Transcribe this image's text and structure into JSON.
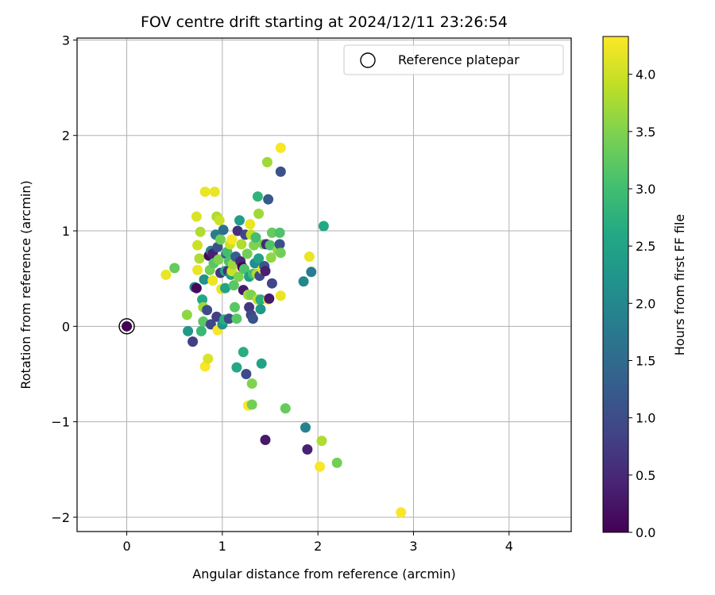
{
  "chart_data": {
    "type": "scatter",
    "title": "FOV centre drift starting at 2024/12/11 23:26:54",
    "xlabel": "Angular distance from reference (arcmin)",
    "ylabel": "Rotation from reference (arcmin)",
    "xlim": [
      -0.52,
      4.65
    ],
    "ylim": [
      -2.15,
      3.02
    ],
    "x_ticks": [
      "0",
      "1",
      "2",
      "3",
      "4"
    ],
    "y_ticks": [
      "−2",
      "−1",
      "0",
      "1",
      "2",
      "3"
    ],
    "x_tick_values": [
      0,
      1,
      2,
      3,
      4
    ],
    "y_tick_values": [
      -2,
      -1,
      0,
      1,
      2,
      3
    ],
    "grid": true,
    "legend": {
      "placement": "top-right",
      "entries": [
        "Reference platepar"
      ]
    },
    "colorbar": {
      "label": "Hours from first FF file",
      "colormap": "viridis",
      "range": [
        0,
        4.33
      ],
      "ticks": [
        "0.0",
        "0.5",
        "1.0",
        "1.5",
        "2.0",
        "2.5",
        "3.0",
        "3.5",
        "4.0"
      ],
      "tick_values": [
        0,
        0.5,
        1.0,
        1.5,
        2.0,
        2.5,
        3.0,
        3.5,
        4.0
      ]
    },
    "reference_point": {
      "x": 0,
      "y": 0,
      "c": 0
    },
    "series": [
      {
        "points": [
          [
            0.41,
            0.54,
            4.2
          ],
          [
            0.5,
            0.61,
            3.3
          ],
          [
            0.63,
            0.12,
            3.6
          ],
          [
            0.64,
            -0.05,
            2.3
          ],
          [
            0.69,
            -0.16,
            0.8
          ],
          [
            0.71,
            0.41,
            1.9
          ],
          [
            0.73,
            1.15,
            4.1
          ],
          [
            0.74,
            0.85,
            4.0
          ],
          [
            0.73,
            0.4,
            0.1
          ],
          [
            0.74,
            0.59,
            4.2
          ],
          [
            0.76,
            0.71,
            3.8
          ],
          [
            0.77,
            0.99,
            3.8
          ],
          [
            0.78,
            -0.05,
            2.9
          ],
          [
            0.79,
            0.28,
            2.6
          ],
          [
            0.8,
            0.05,
            3.2
          ],
          [
            0.8,
            0.2,
            3.7
          ],
          [
            0.81,
            0.49,
            2.2
          ],
          [
            0.82,
            1.41,
            4.2
          ],
          [
            0.82,
            -0.42,
            4.3
          ],
          [
            0.85,
            -0.34,
            4.1
          ],
          [
            0.84,
            0.17,
            1.0
          ],
          [
            0.86,
            0.74,
            0.1
          ],
          [
            0.87,
            0.59,
            3.4
          ],
          [
            0.88,
            0.79,
            1.8
          ],
          [
            0.88,
            0.02,
            0.9
          ],
          [
            0.9,
            0.48,
            4.2
          ],
          [
            0.9,
            0.76,
            0.4
          ],
          [
            0.91,
            0.66,
            3.2
          ],
          [
            0.92,
            1.41,
            4.2
          ],
          [
            0.93,
            0.96,
            1.8
          ],
          [
            0.94,
            1.15,
            3.8
          ],
          [
            0.94,
            0.1,
            0.8
          ],
          [
            0.95,
            0.83,
            1.1
          ],
          [
            0.95,
            -0.04,
            4.3
          ],
          [
            0.96,
            0.7,
            3.5
          ],
          [
            0.97,
            1.11,
            4.0
          ],
          [
            0.98,
            0.56,
            0.7
          ],
          [
            0.98,
            0.91,
            3.4
          ],
          [
            0.99,
            0.39,
            4.2
          ],
          [
            1.0,
            0.02,
            2.2
          ],
          [
            1.01,
            1.01,
            1.6
          ],
          [
            1.02,
            0.07,
            2.7
          ],
          [
            1.03,
            0.58,
            2.5
          ],
          [
            1.03,
            0.4,
            2.5
          ],
          [
            1.04,
            0.76,
            1.2
          ],
          [
            1.05,
            0.78,
            3.0
          ],
          [
            1.06,
            0.58,
            0.6
          ],
          [
            1.07,
            0.68,
            3.1
          ],
          [
            1.07,
            0.08,
            1.0
          ],
          [
            1.08,
            0.86,
            4.0
          ],
          [
            1.09,
            0.54,
            2.4
          ],
          [
            1.1,
            0.91,
            4.3
          ],
          [
            1.1,
            0.58,
            4.0
          ],
          [
            1.11,
            0.65,
            3.7
          ],
          [
            1.12,
            0.43,
            3.2
          ],
          [
            1.13,
            0.2,
            3.2
          ],
          [
            1.14,
            0.73,
            1.3
          ],
          [
            1.15,
            0.08,
            3.2
          ],
          [
            1.15,
            -0.43,
            2.6
          ],
          [
            1.16,
            1.0,
            0.6
          ],
          [
            1.17,
            0.52,
            3.5
          ],
          [
            1.18,
            1.11,
            2.4
          ],
          [
            1.19,
            0.68,
            0.5
          ],
          [
            1.2,
            0.86,
            3.8
          ],
          [
            1.21,
            0.62,
            0.0
          ],
          [
            1.22,
            0.38,
            0.3
          ],
          [
            1.22,
            -0.27,
            2.7
          ],
          [
            1.23,
            0.6,
            3.1
          ],
          [
            1.24,
            0.96,
            0.9
          ],
          [
            1.25,
            -0.5,
            1.0
          ],
          [
            1.26,
            0.76,
            3.4
          ],
          [
            1.27,
            0.33,
            3.7
          ],
          [
            1.27,
            -0.83,
            4.3
          ],
          [
            1.28,
            0.52,
            2.4
          ],
          [
            1.28,
            0.2,
            0.7
          ],
          [
            1.29,
            1.07,
            4.2
          ],
          [
            1.3,
            0.96,
            3.9
          ],
          [
            1.3,
            0.12,
            0.9
          ],
          [
            1.3,
            0.33,
            3.5
          ],
          [
            1.31,
            -0.6,
            3.5
          ],
          [
            1.31,
            -0.82,
            3.4
          ],
          [
            1.32,
            0.55,
            3.0
          ],
          [
            1.32,
            0.08,
            1.1
          ],
          [
            1.33,
            0.85,
            3.5
          ],
          [
            1.34,
            0.66,
            2.1
          ],
          [
            1.35,
            0.93,
            3.0
          ],
          [
            1.36,
            0.55,
            3.8
          ],
          [
            1.37,
            1.36,
            2.8
          ],
          [
            1.37,
            0.28,
            3.9
          ],
          [
            1.38,
            1.18,
            3.7
          ],
          [
            1.38,
            0.71,
            2.5
          ],
          [
            1.39,
            0.53,
            1.0
          ],
          [
            1.4,
            0.18,
            2.3
          ],
          [
            1.4,
            0.28,
            2.7
          ],
          [
            1.41,
            -0.39,
            2.5
          ],
          [
            1.42,
            0.6,
            4.2
          ],
          [
            1.43,
            0.86,
            3.4
          ],
          [
            1.44,
            0.63,
            1.2
          ],
          [
            1.45,
            0.58,
            0.4
          ],
          [
            1.45,
            -1.19,
            0.3
          ],
          [
            1.46,
            0.86,
            0.5
          ],
          [
            1.47,
            1.72,
            3.7
          ],
          [
            1.48,
            0.28,
            4.3
          ],
          [
            1.48,
            1.33,
            1.2
          ],
          [
            1.49,
            0.29,
            0.3
          ],
          [
            1.5,
            0.85,
            3.1
          ],
          [
            1.51,
            0.72,
            3.6
          ],
          [
            1.52,
            0.98,
            3.3
          ],
          [
            1.52,
            0.45,
            0.9
          ],
          [
            1.58,
            0.8,
            3.6
          ],
          [
            1.6,
            0.86,
            1.1
          ],
          [
            1.6,
            0.98,
            3.1
          ],
          [
            1.61,
            0.32,
            4.2
          ],
          [
            1.61,
            1.62,
            1.1
          ],
          [
            1.61,
            1.87,
            4.3
          ],
          [
            1.61,
            0.77,
            3.4
          ],
          [
            1.66,
            -0.86,
            3.3
          ],
          [
            1.85,
            0.47,
            2.0
          ],
          [
            1.87,
            -1.06,
            1.9
          ],
          [
            1.89,
            -1.29,
            0.4
          ],
          [
            1.91,
            0.73,
            4.2
          ],
          [
            1.93,
            0.57,
            1.8
          ],
          [
            2.02,
            -1.47,
            4.3
          ],
          [
            2.04,
            -1.2,
            3.8
          ],
          [
            2.06,
            1.05,
            2.6
          ],
          [
            2.2,
            -1.43,
            3.4
          ],
          [
            2.87,
            -1.95,
            4.3
          ]
        ]
      }
    ]
  }
}
